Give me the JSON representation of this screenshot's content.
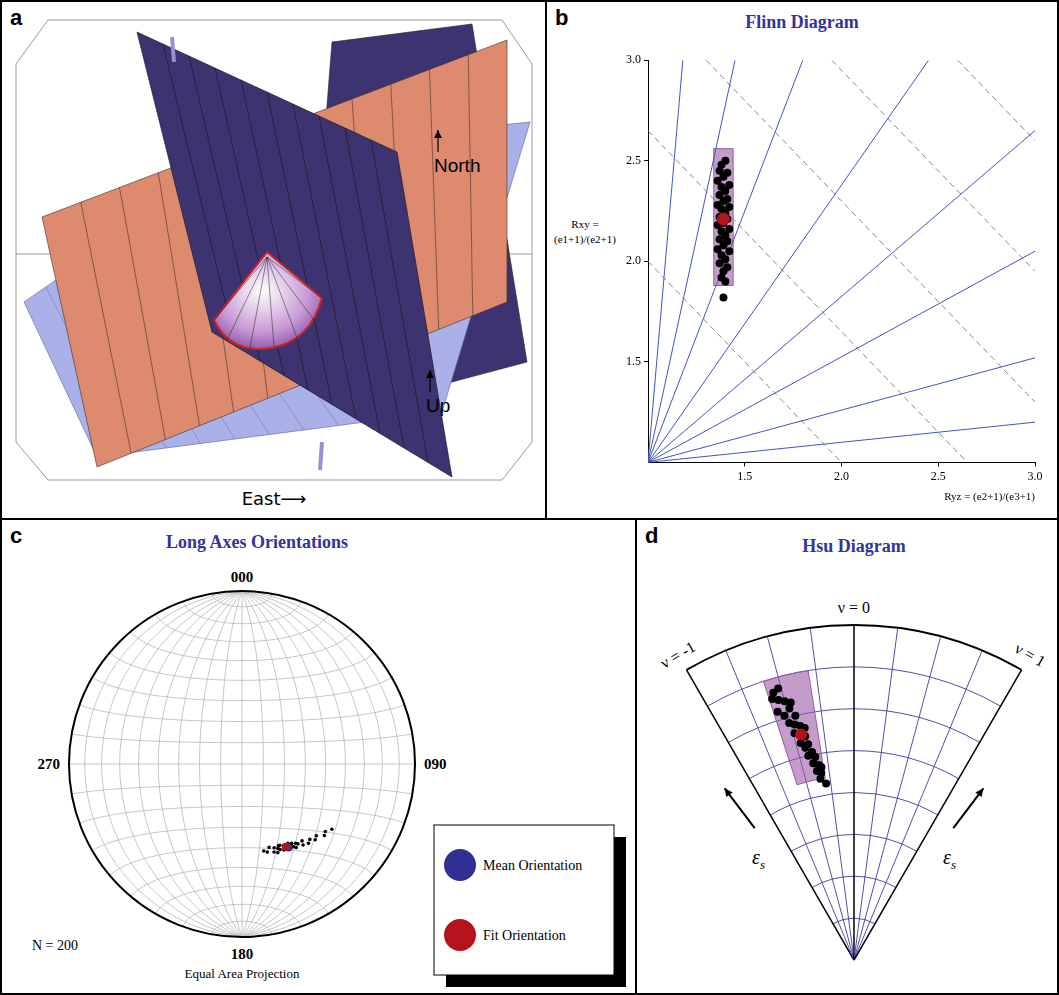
{
  "panel_a": {
    "letter": "a",
    "type": "diagram",
    "labels": {
      "north": "North",
      "up": "Up",
      "east": "East⟶"
    }
  },
  "chart_data": [
    {
      "letter": "b",
      "type": "scatter",
      "title": "Flinn Diagram",
      "x_label": "Ryz = (e2+1)/(e3+1)",
      "y_label": "Rxy = (e1+1)/(e2+1)",
      "xlim": [
        1,
        3
      ],
      "ylim": [
        1,
        3
      ],
      "xticks": [
        1.5,
        {
          "value": 2,
          "label": "2.0"
        },
        2.5,
        {
          "value": 3,
          "label": "3.0"
        }
      ],
      "yticks": [
        1.5,
        {
          "value": 2,
          "label": "2.0"
        },
        2.5,
        {
          "value": 3,
          "label": "3.0"
        }
      ],
      "grid": false,
      "guide_lines": [
        {
          "line_style": "solid",
          "color": "#3f56c0",
          "segments": [
            {
              "x": [
                1,
                1.18
              ],
              "y": [
                1,
                3
              ]
            },
            {
              "x": [
                1,
                1.45
              ],
              "y": [
                1,
                3
              ]
            },
            {
              "x": [
                1,
                1.8
              ],
              "y": [
                1,
                3
              ]
            },
            {
              "x": [
                1,
                2.45
              ],
              "y": [
                1,
                3
              ]
            },
            {
              "x": [
                1,
                3
              ],
              "y": [
                1,
                2.65
              ]
            },
            {
              "x": [
                1,
                3
              ],
              "y": [
                1,
                2.05
              ]
            },
            {
              "x": [
                1,
                3
              ],
              "y": [
                1,
                1.52
              ]
            },
            {
              "x": [
                1,
                3
              ],
              "y": [
                1,
                1.2
              ]
            }
          ]
        },
        {
          "line_style": "dashed",
          "color": "#888888",
          "segments": [
            {
              "x": [
                1,
                2
              ],
              "y": [
                2,
                1
              ]
            },
            {
              "x": [
                1,
                2.65
              ],
              "y": [
                2.65,
                1
              ]
            },
            {
              "x": [
                1.3,
                3
              ],
              "y": [
                3,
                1.3
              ]
            },
            {
              "x": [
                1.95,
                3
              ],
              "y": [
                3,
                1.95
              ]
            },
            {
              "x": [
                2.6,
                3
              ],
              "y": [
                3,
                2.6
              ]
            }
          ]
        }
      ],
      "box": {
        "x": [
          1.34,
          1.44
        ],
        "y": [
          1.88,
          2.56
        ],
        "color": "#9b5aa6"
      },
      "points": {
        "marker": "circle",
        "color": "#000000",
        "x": [
          1.38,
          1.4,
          1.37,
          1.41,
          1.39,
          1.36,
          1.42,
          1.38,
          1.4,
          1.37,
          1.41,
          1.39,
          1.36,
          1.42,
          1.38,
          1.4,
          1.37,
          1.41,
          1.39,
          1.36,
          1.42,
          1.38,
          1.4,
          1.37,
          1.41,
          1.39,
          1.36,
          1.42,
          1.38,
          1.4,
          1.37,
          1.41,
          1.39,
          1.38,
          1.4,
          1.39
        ],
        "y": [
          2.48,
          2.5,
          2.45,
          2.44,
          2.42,
          2.4,
          2.38,
          2.37,
          2.35,
          2.33,
          2.31,
          2.3,
          2.28,
          2.27,
          2.26,
          2.24,
          2.22,
          2.21,
          2.19,
          2.18,
          2.16,
          2.15,
          2.13,
          2.11,
          2.1,
          2.08,
          2.06,
          2.05,
          2.03,
          2.01,
          1.99,
          1.97,
          1.95,
          1.92,
          1.9,
          1.82
        ]
      },
      "mean": {
        "x": 1.39,
        "y": 2.21,
        "color": "#b5121b"
      }
    },
    {
      "letter": "c",
      "type": "stereonet",
      "title": "Long Axes Orientations",
      "direction_labels": [
        {
          "value": 0,
          "label": "000"
        },
        {
          "value": 90,
          "label": "090"
        },
        {
          "value": 180,
          "label": "180"
        },
        {
          "value": 270,
          "label": "270"
        }
      ],
      "n_label": "N = 200",
      "projection_label": "Equal Area Projection",
      "grid": true,
      "points": {
        "color": "#000000",
        "trend": [
          166,
          164,
          162,
          160,
          159,
          158,
          157,
          156,
          155,
          154,
          153,
          152,
          151,
          150,
          149,
          148,
          147,
          146,
          145,
          143,
          142,
          140,
          138,
          136,
          134,
          131,
          129,
          126,
          150,
          153,
          156,
          148
        ],
        "plunge": [
          47,
          46,
          48,
          45,
          47,
          44,
          46,
          45,
          47,
          44,
          46,
          45,
          43,
          46,
          44,
          45,
          42,
          44,
          43,
          41,
          43,
          40,
          41,
          39,
          40,
          37,
          38,
          36,
          43,
          44,
          47,
          43
        ]
      },
      "mean": {
        "name": "Mean Orientation",
        "trend": 151,
        "plunge": 44,
        "color": "#2e3192"
      },
      "fit": {
        "name": "Fit Orientation",
        "trend": 152,
        "plunge": 45,
        "color": "#b5121b"
      }
    },
    {
      "letter": "d",
      "type": "hsu",
      "title": "Hsu Diagram",
      "nulim": [
        -1,
        1
      ],
      "eslim": [
        0,
        1.2
      ],
      "nu_grid": [
        -1,
        -0.75,
        -0.5,
        -0.25,
        0,
        0.25,
        0.5,
        0.75,
        1
      ],
      "es_grid": [
        0.15,
        0.3,
        0.45,
        0.6,
        0.75,
        0.9,
        1.05,
        1.2
      ],
      "nu_labels": [
        {
          "value": -1,
          "label": "ν = -1"
        },
        {
          "value": 0,
          "label": "ν = 0"
        },
        {
          "value": 1,
          "label": "ν = 1"
        }
      ],
      "radial_label": "εs",
      "box": {
        "nu": [
          -0.6,
          -0.3
        ],
        "es": [
          0.66,
          1.05
        ],
        "color": "#9b5aa6"
      },
      "points": {
        "color": "#000000",
        "nu": [
          -0.56,
          -0.52,
          -0.54,
          -0.5,
          -0.57,
          -0.48,
          -0.53,
          -0.45,
          -0.51,
          -0.47,
          -0.43,
          -0.49,
          -0.44,
          -0.41,
          -0.46,
          -0.4,
          -0.43,
          -0.38,
          -0.42,
          -0.36,
          -0.39,
          -0.34,
          -0.37,
          -0.33,
          -0.35,
          -0.3,
          -0.58,
          -0.46,
          -0.4,
          -0.32
        ],
        "es": [
          1.0,
          1.01,
          0.97,
          0.96,
          0.93,
          0.93,
          0.91,
          0.9,
          0.88,
          0.87,
          0.86,
          0.84,
          0.83,
          0.82,
          0.8,
          0.79,
          0.78,
          0.76,
          0.75,
          0.74,
          0.72,
          0.71,
          0.69,
          0.68,
          0.66,
          0.64,
          0.98,
          0.95,
          0.85,
          0.7
        ]
      },
      "mean": {
        "nu": -0.44,
        "es": 0.83,
        "color": "#b5121b"
      }
    }
  ]
}
